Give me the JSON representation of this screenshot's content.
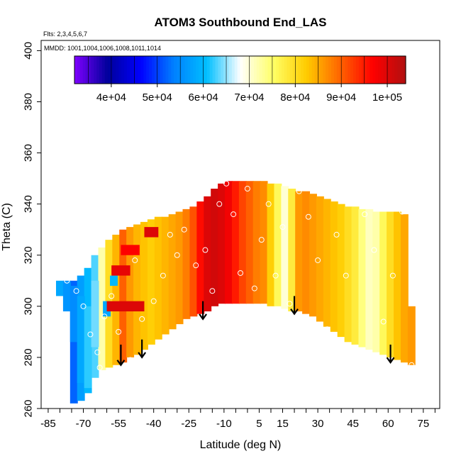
{
  "chart_data": {
    "type": "heatmap",
    "title": "ATOM3 Southbound End_LAS",
    "subtitle_flights": "Flts: 2,3,4,5,6,7",
    "subtitle_dates": "MMDD: 1001,1004,1006,1008,1011,1014",
    "xlabel": "Latitude (deg N)",
    "ylabel": "Theta (C)",
    "xlim": [
      -88,
      82
    ],
    "ylim": [
      260,
      404
    ],
    "x_ticks": [
      -85,
      -70,
      -55,
      -40,
      -25,
      -10,
      5,
      15,
      30,
      45,
      60,
      75
    ],
    "x_tick_labels": [
      "-85",
      "-70",
      "-55",
      "-40",
      "-25",
      "-10",
      "5",
      "15",
      "30",
      "45",
      "60",
      "75"
    ],
    "y_ticks": [
      260,
      280,
      300,
      320,
      340,
      360,
      380,
      400
    ],
    "y_tick_labels": [
      "260",
      "280",
      "300",
      "320",
      "340",
      "360",
      "380",
      "400"
    ],
    "colorbar": {
      "min": 32000,
      "max": 104000,
      "ticks": [
        40000,
        50000,
        60000,
        70000,
        80000,
        90000,
        100000
      ],
      "tick_labels": [
        "4e+04",
        "5e+04",
        "6e+04",
        "7e+04",
        "8e+04",
        "9e+04",
        "1e+05"
      ],
      "colors": [
        "#7f00ff",
        "#00009b",
        "#0000ff",
        "#0080ff",
        "#00bfff",
        "#ffffff",
        "#ffff66",
        "#ffcc00",
        "#ff6600",
        "#ff0000",
        "#b01010"
      ]
    },
    "field_columns": [
      {
        "lat": -74,
        "theta_bottom": 262,
        "theta_top": 310,
        "value": 52000
      },
      {
        "lat": -71,
        "theta_bottom": 263,
        "theta_top": 312,
        "value": 57000
      },
      {
        "lat": -68,
        "theta_bottom": 266,
        "theta_top": 315,
        "value": 60000
      },
      {
        "lat": -65,
        "theta_bottom": 272,
        "theta_top": 320,
        "value": 63000
      },
      {
        "lat": -62,
        "theta_bottom": 275,
        "theta_top": 323,
        "value": 72000
      },
      {
        "lat": -59,
        "theta_bottom": 276,
        "theta_top": 326,
        "value": 80000
      },
      {
        "lat": -56,
        "theta_bottom": 277,
        "theta_top": 328,
        "value": 84000
      },
      {
        "lat": -53,
        "theta_bottom": 278,
        "theta_top": 330,
        "value": 90000
      },
      {
        "lat": -50,
        "theta_bottom": 280,
        "theta_top": 331,
        "value": 86000
      },
      {
        "lat": -47,
        "theta_bottom": 281,
        "theta_top": 332,
        "value": 84000
      },
      {
        "lat": -44,
        "theta_bottom": 283,
        "theta_top": 333,
        "value": 83000
      },
      {
        "lat": -41,
        "theta_bottom": 285,
        "theta_top": 334,
        "value": 82000
      },
      {
        "lat": -38,
        "theta_bottom": 287,
        "theta_top": 335,
        "value": 83000
      },
      {
        "lat": -35,
        "theta_bottom": 289,
        "theta_top": 335,
        "value": 84000
      },
      {
        "lat": -32,
        "theta_bottom": 291,
        "theta_top": 336,
        "value": 85000
      },
      {
        "lat": -29,
        "theta_bottom": 293,
        "theta_top": 337,
        "value": 86000
      },
      {
        "lat": -26,
        "theta_bottom": 295,
        "theta_top": 338,
        "value": 88000
      },
      {
        "lat": -23,
        "theta_bottom": 296,
        "theta_top": 339,
        "value": 91000
      },
      {
        "lat": -20,
        "theta_bottom": 297,
        "theta_top": 341,
        "value": 96000
      },
      {
        "lat": -17,
        "theta_bottom": 298,
        "theta_top": 343,
        "value": 100000
      },
      {
        "lat": -14,
        "theta_bottom": 300,
        "theta_top": 346,
        "value": 101000
      },
      {
        "lat": -11,
        "theta_bottom": 301,
        "theta_top": 348,
        "value": 100000
      },
      {
        "lat": -8,
        "theta_bottom": 301,
        "theta_top": 349,
        "value": 98000
      },
      {
        "lat": -5,
        "theta_bottom": 301,
        "theta_top": 349,
        "value": 95000
      },
      {
        "lat": -2,
        "theta_bottom": 301,
        "theta_top": 349,
        "value": 92000
      },
      {
        "lat": 1,
        "theta_bottom": 301,
        "theta_top": 349,
        "value": 90000
      },
      {
        "lat": 4,
        "theta_bottom": 301,
        "theta_top": 349,
        "value": 88000
      },
      {
        "lat": 7,
        "theta_bottom": 301,
        "theta_top": 349,
        "value": 87000
      },
      {
        "lat": 10,
        "theta_bottom": 300,
        "theta_top": 348,
        "value": 82000
      },
      {
        "lat": 13,
        "theta_bottom": 300,
        "theta_top": 348,
        "value": 76000
      },
      {
        "lat": 16,
        "theta_bottom": 299,
        "theta_top": 347,
        "value": 70000
      },
      {
        "lat": 19,
        "theta_bottom": 298,
        "theta_top": 346,
        "value": 78000
      },
      {
        "lat": 22,
        "theta_bottom": 298,
        "theta_top": 345,
        "value": 86000
      },
      {
        "lat": 25,
        "theta_bottom": 297,
        "theta_top": 345,
        "value": 87000
      },
      {
        "lat": 28,
        "theta_bottom": 296,
        "theta_top": 344,
        "value": 86000
      },
      {
        "lat": 31,
        "theta_bottom": 294,
        "theta_top": 343,
        "value": 85000
      },
      {
        "lat": 34,
        "theta_bottom": 292,
        "theta_top": 342,
        "value": 84000
      },
      {
        "lat": 37,
        "theta_bottom": 290,
        "theta_top": 341,
        "value": 83000
      },
      {
        "lat": 40,
        "theta_bottom": 288,
        "theta_top": 340,
        "value": 82000
      },
      {
        "lat": 43,
        "theta_bottom": 286,
        "theta_top": 339,
        "value": 80000
      },
      {
        "lat": 46,
        "theta_bottom": 285,
        "theta_top": 339,
        "value": 78000
      },
      {
        "lat": 49,
        "theta_bottom": 284,
        "theta_top": 338,
        "value": 74000
      },
      {
        "lat": 52,
        "theta_bottom": 283,
        "theta_top": 338,
        "value": 71000
      },
      {
        "lat": 55,
        "theta_bottom": 282,
        "theta_top": 337,
        "value": 72000
      },
      {
        "lat": 58,
        "theta_bottom": 281,
        "theta_top": 337,
        "value": 76000
      },
      {
        "lat": 61,
        "theta_bottom": 280,
        "theta_top": 337,
        "value": 80000
      },
      {
        "lat": 64,
        "theta_bottom": 279,
        "theta_top": 337,
        "value": 83000
      },
      {
        "lat": 67,
        "theta_bottom": 278,
        "theta_top": 336,
        "value": 85000
      },
      {
        "lat": 70,
        "theta_bottom": 277,
        "theta_top": 300,
        "value": 86000
      }
    ],
    "blue_patch_columns": [
      {
        "lat": -80,
        "theta_bottom": 304,
        "theta_top": 310,
        "value": 58000
      },
      {
        "lat": -77,
        "theta_bottom": 298,
        "theta_top": 310,
        "value": 56000
      },
      {
        "lat": -74,
        "theta_bottom": 286,
        "theta_top": 308,
        "value": 55000
      },
      {
        "lat": -71,
        "theta_bottom": 270,
        "theta_top": 304,
        "value": 58000
      },
      {
        "lat": -68,
        "theta_bottom": 268,
        "theta_top": 300,
        "value": 62000
      },
      {
        "lat": -65,
        "theta_bottom": 284,
        "theta_top": 310,
        "value": 64000
      },
      {
        "lat": -60,
        "theta_bottom": 296,
        "theta_top": 302,
        "value": 58000
      },
      {
        "lat": -57,
        "theta_bottom": 308,
        "theta_top": 312,
        "value": 60000
      }
    ],
    "red_streaks": [
      {
        "lat_start": -60,
        "lat_end": -44,
        "theta": 300,
        "value": 100000
      },
      {
        "lat_start": -58,
        "lat_end": -50,
        "theta": 314,
        "value": 99000
      },
      {
        "lat_start": -54,
        "lat_end": -46,
        "theta": 322,
        "value": 97000
      },
      {
        "lat_start": -44,
        "lat_end": -38,
        "theta": 329,
        "value": 100000
      }
    ],
    "observations": [
      {
        "lat": -77,
        "theta": 310
      },
      {
        "lat": -73,
        "theta": 306
      },
      {
        "lat": -70,
        "theta": 300
      },
      {
        "lat": -67,
        "theta": 289
      },
      {
        "lat": -64,
        "theta": 282
      },
      {
        "lat": -63,
        "theta": 276
      },
      {
        "lat": -61,
        "theta": 296
      },
      {
        "lat": -58,
        "theta": 304
      },
      {
        "lat": -55,
        "theta": 290
      },
      {
        "lat": -50,
        "theta": 279
      },
      {
        "lat": -48,
        "theta": 318
      },
      {
        "lat": -45,
        "theta": 295
      },
      {
        "lat": -40,
        "theta": 302
      },
      {
        "lat": -36,
        "theta": 312
      },
      {
        "lat": -33,
        "theta": 328
      },
      {
        "lat": -30,
        "theta": 320
      },
      {
        "lat": -27,
        "theta": 330
      },
      {
        "lat": -22,
        "theta": 316
      },
      {
        "lat": -18,
        "theta": 322
      },
      {
        "lat": -15,
        "theta": 306
      },
      {
        "lat": -12,
        "theta": 340
      },
      {
        "lat": -9,
        "theta": 348
      },
      {
        "lat": -6,
        "theta": 336
      },
      {
        "lat": -3,
        "theta": 313
      },
      {
        "lat": 0,
        "theta": 346
      },
      {
        "lat": 3,
        "theta": 307
      },
      {
        "lat": 6,
        "theta": 326
      },
      {
        "lat": 9,
        "theta": 340
      },
      {
        "lat": 12,
        "theta": 312
      },
      {
        "lat": 15,
        "theta": 331
      },
      {
        "lat": 18,
        "theta": 301
      },
      {
        "lat": 22,
        "theta": 345
      },
      {
        "lat": 26,
        "theta": 335
      },
      {
        "lat": 30,
        "theta": 318
      },
      {
        "lat": 34,
        "theta": 291
      },
      {
        "lat": 38,
        "theta": 328
      },
      {
        "lat": 42,
        "theta": 312
      },
      {
        "lat": 46,
        "theta": 283
      },
      {
        "lat": 50,
        "theta": 336
      },
      {
        "lat": 54,
        "theta": 322
      },
      {
        "lat": 58,
        "theta": 294
      },
      {
        "lat": 62,
        "theta": 312
      },
      {
        "lat": 66,
        "theta": 337
      },
      {
        "lat": 70,
        "theta": 277
      }
    ],
    "arrows": [
      {
        "lat": -54,
        "theta_from": 285,
        "theta_to": 277
      },
      {
        "lat": -45,
        "theta_from": 287,
        "theta_to": 280
      },
      {
        "lat": -19,
        "theta_from": 302,
        "theta_to": 295
      },
      {
        "lat": 20,
        "theta_from": 304,
        "theta_to": 297
      },
      {
        "lat": 61,
        "theta_from": 285,
        "theta_to": 278
      }
    ]
  }
}
